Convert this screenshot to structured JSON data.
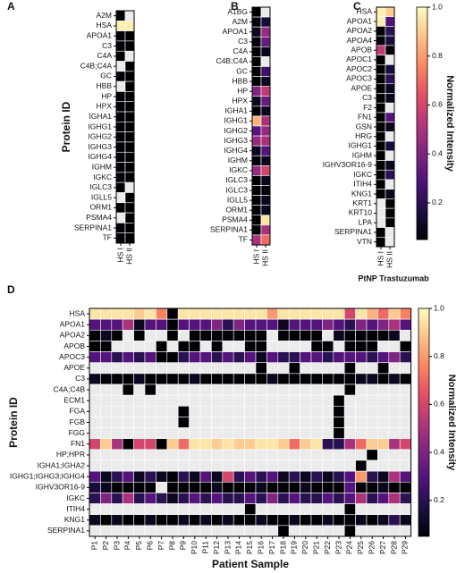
{
  "chart_data": [
    {
      "type": "heatmap",
      "panel": "A",
      "ylabel": "Protein ID",
      "x": [
        "HS I",
        "HS II"
      ],
      "y": [
        "A2M",
        "HSA",
        "APOA1",
        "C3",
        "C4A",
        "C4B;C4A",
        "GC",
        "HBB",
        "HP",
        "HPX",
        "IGHA1",
        "IGHG1",
        "IGHG2",
        "IGHG3",
        "IGHG4",
        "IGHM",
        "IGKC",
        "IGLC3",
        "IGLL5",
        "ORM1",
        "PSMA4",
        "SERPINA1",
        "TF"
      ],
      "values": [
        [
          0.05,
          null
        ],
        [
          0.97,
          0.97
        ],
        [
          0.05,
          0.05
        ],
        [
          0.05,
          0.05
        ],
        [
          0.05,
          null
        ],
        [
          null,
          0.05
        ],
        [
          0.05,
          0.05
        ],
        [
          null,
          0.05
        ],
        [
          0.05,
          0.05
        ],
        [
          0.05,
          0.05
        ],
        [
          0.05,
          0.05
        ],
        [
          0.05,
          0.05
        ],
        [
          0.05,
          0.05
        ],
        [
          0.05,
          0.05
        ],
        [
          0.05,
          0.05
        ],
        [
          0.05,
          0.05
        ],
        [
          0.05,
          0.05
        ],
        [
          0.05,
          null
        ],
        [
          null,
          0.05
        ],
        [
          0.05,
          0.05
        ],
        [
          null,
          0.05
        ],
        [
          0.05,
          0.05
        ],
        [
          0.05,
          0.05
        ]
      ],
      "clim": [
        0.05,
        1
      ],
      "colormap": [
        "#000004",
        "#1c1044",
        "#4f127b",
        "#812581",
        "#b5367a",
        "#e55064",
        "#fb8761",
        "#fec287",
        "#fcfdbf"
      ],
      "missing_color": "#ebebeb"
    },
    {
      "type": "heatmap",
      "panel": "B",
      "x": [
        "HS I",
        "HS II"
      ],
      "y": [
        "A1BG",
        "A2M",
        "APOA1",
        "C3",
        "C4A",
        "C4B;C4A",
        "GC",
        "HBB",
        "HP",
        "HPX",
        "IGHA1",
        "IGHG1",
        "IGHG2",
        "IGHG3",
        "IGHG4",
        "IGHM",
        "IGKC",
        "IGLC3",
        "IGLC3",
        "IGLL5",
        "ORM1",
        "PSMA4",
        "SERPINA1",
        "TF"
      ],
      "values": [
        [
          0.05,
          null
        ],
        [
          0.05,
          0.15
        ],
        [
          0.1,
          0.45
        ],
        [
          0.05,
          0.35
        ],
        [
          0.05,
          0.1
        ],
        [
          0.05,
          null
        ],
        [
          0.05,
          0.25
        ],
        [
          0.05,
          0.1
        ],
        [
          0.4,
          0.55
        ],
        [
          0.1,
          0.35
        ],
        [
          0.05,
          0.1
        ],
        [
          0.85,
          0.5
        ],
        [
          0.3,
          0.45
        ],
        [
          0.45,
          0.5
        ],
        [
          0.1,
          0.3
        ],
        [
          0.05,
          0.1
        ],
        [
          0.45,
          0.6
        ],
        [
          0.05,
          0.1
        ],
        [
          0.05,
          0.05
        ],
        [
          0.05,
          0.1
        ],
        [
          0.05,
          0.1
        ],
        [
          0.05,
          0.95
        ],
        [
          0.05,
          0.5
        ],
        [
          0.5,
          0.7
        ]
      ],
      "clim": [
        0.05,
        1
      ],
      "colormap": [
        "#000004",
        "#1c1044",
        "#4f127b",
        "#812581",
        "#b5367a",
        "#e55064",
        "#fb8761",
        "#fec287",
        "#fcfdbf"
      ],
      "missing_color": "#ebebeb"
    },
    {
      "type": "heatmap",
      "panel": "C",
      "xlabel": "PtNP Trastuzumab",
      "x": [
        "HS I",
        "HS II"
      ],
      "y": [
        "HSA",
        "APOA1",
        "APOA2",
        "APOA4",
        "APOB",
        "APOC1",
        "APOC2",
        "APOC3",
        "APOE",
        "C3",
        "F2",
        "FN1",
        "GSN",
        "HRG",
        "IGHG1",
        "IGHM",
        "IGHV3OR16-9",
        "IGKC",
        "ITIH4",
        "KNG1",
        "KRT1",
        "KRT10",
        "LPA",
        "SERPINA1",
        "VTN"
      ],
      "values": [
        [
          0.97,
          0.9
        ],
        [
          0.97,
          0.3
        ],
        [
          0.05,
          0.2
        ],
        [
          0.05,
          0.15
        ],
        [
          0.55,
          0.05
        ],
        [
          0.05,
          null
        ],
        [
          0.05,
          0.15
        ],
        [
          0.05,
          0.2
        ],
        [
          0.05,
          0.1
        ],
        [
          0.05,
          0.1
        ],
        [
          0.05,
          null
        ],
        [
          0.05,
          0.3
        ],
        [
          0.05,
          0.1
        ],
        [
          0.05,
          null
        ],
        [
          0.05,
          0.15
        ],
        [
          0.05,
          null
        ],
        [
          0.05,
          0.1
        ],
        [
          0.05,
          0.2
        ],
        [
          0.05,
          null
        ],
        [
          0.05,
          0.1
        ],
        [
          null,
          0.05
        ],
        [
          null,
          0.05
        ],
        [
          null,
          0.05
        ],
        [
          0.05,
          null
        ],
        [
          0.05,
          null
        ]
      ],
      "clim": [
        0.05,
        1
      ],
      "colormap": [
        "#000004",
        "#1c1044",
        "#4f127b",
        "#812581",
        "#b5367a",
        "#e55064",
        "#fb8761",
        "#fec287",
        "#fcfdbf"
      ],
      "missing_color": "#ebebeb",
      "colorbar_label": "Normalized Intensity",
      "cticks": [
        0.2,
        0.4,
        0.6,
        0.8,
        {
          "value": 1,
          "label": "1.0"
        }
      ]
    },
    {
      "type": "heatmap",
      "panel": "D",
      "ylabel": "Protein ID",
      "xlabel": "Patient Sample",
      "x": [
        "P1",
        "P2",
        "P3",
        "P4",
        "P5",
        "P6",
        "P7",
        "P8",
        "P9",
        "P10",
        "P11",
        "P12",
        "P13",
        "P14",
        "P15",
        "P16",
        "P17",
        "P18",
        "P19",
        "P20",
        "P21",
        "P22",
        "P23",
        "P24",
        "P25",
        "P26",
        "P27",
        "P28",
        "P29"
      ],
      "y": [
        "HSA",
        "APOA1",
        "APOA2",
        "APOB",
        "APOC3",
        "APOE",
        "C3",
        "C4A;C4B",
        "ECM1",
        "FGA",
        "FGB",
        "FGG",
        "FN1",
        "HP;HPR",
        "IGHA1;IGHA2",
        "IGHG1;IGHG3;IGHG4",
        "IGHV3OR16-9",
        "IGKC",
        "ITIH4",
        "KNG1",
        "SERPINA1"
      ],
      "values": [
        [
          0.95,
          0.95,
          0.95,
          0.95,
          0.9,
          0.95,
          0.75,
          0.05,
          0.95,
          0.95,
          0.95,
          0.95,
          0.95,
          0.95,
          0.95,
          0.95,
          0.8,
          0.95,
          0.95,
          0.95,
          0.95,
          0.95,
          0.95,
          0.6,
          0.95,
          0.85,
          0.7,
          0.9,
          0.75
        ],
        [
          0.3,
          0.3,
          0.3,
          0.5,
          0.1,
          0.3,
          0.3,
          0.05,
          0.3,
          0.3,
          0.3,
          0.4,
          0.2,
          0.4,
          0.3,
          0.3,
          0.3,
          0.1,
          0.3,
          0.3,
          0.3,
          0.4,
          0.3,
          0.2,
          0.4,
          0.3,
          0.4,
          0.5,
          0.3
        ],
        [
          0.05,
          0.1,
          0.05,
          null,
          0.05,
          null,
          null,
          0.05,
          null,
          0.05,
          0.05,
          0.05,
          0.05,
          0.05,
          0.05,
          0.05,
          null,
          0.05,
          0.05,
          0.05,
          0.05,
          null,
          0.1,
          0.05,
          0.05,
          0.05,
          0.05,
          0.1,
          null
        ],
        [
          0.05,
          0.05,
          null,
          null,
          null,
          null,
          0.05,
          null,
          0.05,
          0.05,
          null,
          0.05,
          null,
          null,
          0.05,
          0.05,
          null,
          null,
          null,
          null,
          0.05,
          0.05,
          null,
          0.05,
          0.05,
          0.05,
          null,
          null,
          0.05
        ],
        [
          0.3,
          0.3,
          0.2,
          0.3,
          0.2,
          0.3,
          0.05,
          0.05,
          0.2,
          0.3,
          0.3,
          0.2,
          0.3,
          0.2,
          0.3,
          0.1,
          0.3,
          0.2,
          0.2,
          0.3,
          0.3,
          0.2,
          0.3,
          0.3,
          0.3,
          0.2,
          0.3,
          0.4,
          0.2
        ],
        [
          null,
          null,
          null,
          null,
          null,
          null,
          null,
          null,
          null,
          null,
          null,
          null,
          null,
          null,
          null,
          0.05,
          null,
          null,
          0.05,
          null,
          null,
          null,
          null,
          0.05,
          null,
          null,
          0.05,
          null,
          null
        ],
        [
          0.1,
          0.05,
          0.05,
          0.05,
          0.1,
          0.05,
          0.05,
          0.05,
          0.05,
          0.1,
          0.05,
          0.05,
          0.05,
          0.05,
          0.05,
          0.05,
          0.1,
          0.05,
          0.05,
          0.05,
          0.05,
          0.05,
          0.05,
          0.05,
          0.1,
          0.1,
          0.05,
          0.1,
          0.05
        ],
        [
          null,
          null,
          null,
          0.05,
          null,
          0.05,
          null,
          null,
          null,
          null,
          null,
          null,
          null,
          null,
          null,
          null,
          null,
          null,
          null,
          null,
          null,
          null,
          null,
          0.05,
          null,
          null,
          null,
          null,
          null
        ],
        [
          null,
          null,
          null,
          null,
          null,
          null,
          null,
          null,
          null,
          null,
          null,
          null,
          null,
          null,
          null,
          null,
          null,
          null,
          null,
          null,
          null,
          null,
          0.05,
          null,
          null,
          null,
          null,
          null,
          null
        ],
        [
          null,
          null,
          null,
          null,
          null,
          null,
          null,
          null,
          0.05,
          null,
          null,
          null,
          null,
          null,
          null,
          null,
          null,
          null,
          null,
          null,
          null,
          null,
          0.05,
          null,
          null,
          null,
          null,
          null,
          null
        ],
        [
          null,
          null,
          null,
          null,
          null,
          null,
          null,
          null,
          0.05,
          null,
          null,
          null,
          null,
          null,
          null,
          null,
          null,
          null,
          null,
          null,
          null,
          null,
          0.05,
          null,
          null,
          null,
          null,
          null,
          null
        ],
        [
          null,
          null,
          null,
          null,
          null,
          null,
          null,
          null,
          null,
          null,
          null,
          null,
          null,
          null,
          null,
          null,
          null,
          null,
          null,
          null,
          null,
          null,
          0.05,
          null,
          null,
          null,
          null,
          null,
          null
        ],
        [
          0.6,
          0.9,
          0.5,
          0.05,
          0.6,
          0.6,
          0.05,
          0.9,
          0.7,
          0.95,
          0.95,
          0.9,
          0.95,
          0.9,
          0.9,
          0.95,
          0.95,
          0.9,
          0.7,
          0.9,
          0.95,
          0.2,
          0.2,
          0.5,
          0.7,
          0.9,
          0.9,
          0.5,
          0.6
        ],
        [
          null,
          null,
          null,
          null,
          null,
          null,
          null,
          null,
          null,
          null,
          null,
          null,
          null,
          null,
          null,
          null,
          null,
          null,
          null,
          null,
          null,
          null,
          null,
          null,
          null,
          0.05,
          null,
          null,
          null
        ],
        [
          null,
          null,
          null,
          null,
          null,
          null,
          null,
          null,
          null,
          null,
          null,
          null,
          null,
          null,
          null,
          null,
          null,
          null,
          null,
          null,
          null,
          null,
          null,
          null,
          0.05,
          null,
          null,
          null,
          null
        ],
        [
          0.3,
          0.1,
          0.2,
          0.3,
          0.1,
          0.2,
          0.1,
          0.05,
          0.2,
          0.1,
          0.3,
          0.1,
          0.6,
          0.2,
          0.3,
          0.2,
          0.3,
          0.1,
          0.2,
          0.1,
          0.2,
          0.1,
          0.2,
          0.3,
          0.8,
          0.2,
          0.1,
          0.5,
          0.3
        ],
        [
          0.15,
          0.1,
          0.05,
          0.05,
          0.05,
          0.05,
          null,
          0.05,
          0.05,
          0.05,
          0.05,
          0.1,
          0.05,
          0.05,
          0.05,
          0.1,
          0.05,
          0.05,
          0.05,
          0.1,
          0.05,
          0.05,
          0.05,
          0.3,
          0.05,
          0.05,
          0.1,
          0.05,
          0.05
        ],
        [
          0.2,
          0.4,
          0.2,
          0.5,
          0.2,
          0.3,
          0.2,
          0.1,
          0.2,
          0.3,
          0.2,
          0.3,
          0.2,
          0.2,
          0.3,
          0.2,
          0.4,
          0.2,
          0.3,
          0.2,
          0.2,
          0.3,
          0.2,
          0.3,
          0.5,
          0.2,
          0.3,
          0.5,
          0.2
        ],
        [
          null,
          null,
          null,
          null,
          null,
          null,
          null,
          null,
          null,
          null,
          null,
          null,
          null,
          null,
          0.05,
          null,
          null,
          null,
          null,
          null,
          null,
          null,
          null,
          0.05,
          null,
          null,
          null,
          null,
          null
        ],
        [
          0.1,
          0.05,
          0.1,
          0.05,
          0.05,
          0.1,
          0.05,
          0.05,
          0.1,
          0.05,
          0.1,
          0.05,
          0.1,
          0.05,
          0.05,
          0.1,
          0.05,
          0.05,
          0.1,
          0.05,
          0.05,
          0.1,
          0.05,
          0.05,
          0.1,
          0.05,
          0.1,
          0.2,
          0.1
        ],
        [
          null,
          null,
          null,
          null,
          null,
          null,
          null,
          null,
          null,
          null,
          null,
          null,
          null,
          null,
          null,
          null,
          null,
          0.05,
          null,
          null,
          null,
          null,
          null,
          0.05,
          null,
          null,
          null,
          null,
          null
        ]
      ],
      "clim": [
        0.05,
        1
      ],
      "colormap": [
        "#000004",
        "#1c1044",
        "#4f127b",
        "#812581",
        "#b5367a",
        "#e55064",
        "#fb8761",
        "#fec287",
        "#fcfdbf"
      ],
      "missing_color": "#ebebeb",
      "colorbar_label": "Normalized Intensity",
      "cticks": [
        0.2,
        0.4,
        0.6,
        0.8,
        {
          "value": 1,
          "label": "1.0"
        }
      ]
    }
  ]
}
